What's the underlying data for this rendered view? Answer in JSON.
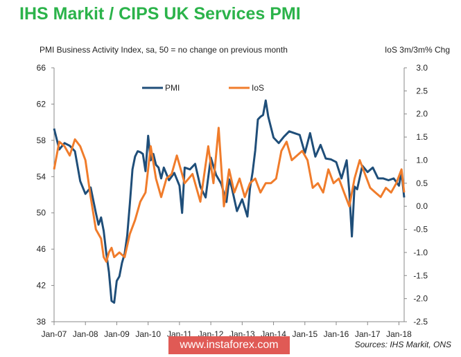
{
  "header": {
    "title": "IHS Markit / CIPS UK Services PMI",
    "subtitle": "PMI Business Activity Index, sa, 50 = no change on previous month",
    "right_axis_label": "IoS 3m/3m% Chg"
  },
  "footer": {
    "watermark": "www.instaforex.com",
    "source": "Sources: IHS Markit, ONS"
  },
  "colors": {
    "pmi": "#1f4e79",
    "ios": "#f07c2b",
    "title": "#2bb34a",
    "watermark_bg": "#e05a55"
  },
  "chart_data": {
    "type": "line",
    "x_range": [
      "Jan-07",
      "Mar-18"
    ],
    "x_ticks": [
      "Jan-07",
      "Jan-08",
      "Jan-09",
      "Jan-10",
      "Jan-11",
      "Jan-12",
      "Jan-13",
      "Jan-14",
      "Jan-15",
      "Jan-16",
      "Jan-17",
      "Jan-18"
    ],
    "ylim": [
      38,
      66
    ],
    "y_ticks": [
      "38",
      "42",
      "46",
      "50",
      "54",
      "58",
      "62",
      "66"
    ],
    "y2lim": [
      -2.5,
      3.0
    ],
    "y2_ticks": [
      "-2.5",
      "-2.0",
      "-1.5",
      "-1.0",
      "-0.5",
      "0.0",
      "0.5",
      "1.0",
      "1.5",
      "2.0",
      "2.5",
      "3.0"
    ],
    "grid": false,
    "legend": "top-center",
    "series": [
      {
        "name": "PMI",
        "axis": "left",
        "x": [
          "2007-01",
          "2007-03",
          "2007-05",
          "2007-07",
          "2007-09",
          "2007-11",
          "2008-01",
          "2008-03",
          "2008-05",
          "2008-06",
          "2008-07",
          "2008-08",
          "2008-09",
          "2008-10",
          "2008-11",
          "2008-12",
          "2009-01",
          "2009-02",
          "2009-03",
          "2009-04",
          "2009-05",
          "2009-06",
          "2009-07",
          "2009-08",
          "2009-09",
          "2009-10",
          "2009-11",
          "2009-12",
          "2010-01",
          "2010-02",
          "2010-03",
          "2010-04",
          "2010-05",
          "2010-06",
          "2010-07",
          "2010-09",
          "2010-11",
          "2011-01",
          "2011-02",
          "2011-03",
          "2011-05",
          "2011-07",
          "2011-09",
          "2011-11",
          "2012-01",
          "2012-03",
          "2012-05",
          "2012-07",
          "2012-08",
          "2012-09",
          "2012-11",
          "2013-01",
          "2013-03",
          "2013-04",
          "2013-05",
          "2013-06",
          "2013-07",
          "2013-08",
          "2013-09",
          "2013-10",
          "2013-11",
          "2014-01",
          "2014-03",
          "2014-05",
          "2014-07",
          "2014-09",
          "2014-11",
          "2015-01",
          "2015-03",
          "2015-05",
          "2015-07",
          "2015-09",
          "2015-11",
          "2016-01",
          "2016-03",
          "2016-05",
          "2016-06",
          "2016-07",
          "2016-08",
          "2016-09",
          "2016-11",
          "2017-01",
          "2017-03",
          "2017-05",
          "2017-07",
          "2017-09",
          "2017-11",
          "2018-01",
          "2018-02",
          "2018-03"
        ],
        "values": [
          59.3,
          57.0,
          57.7,
          57.4,
          56.8,
          53.5,
          52.1,
          52.8,
          50.0,
          48.7,
          49.5,
          48.0,
          45.5,
          43.5,
          40.3,
          40.1,
          42.5,
          43.0,
          44.5,
          45.5,
          47.5,
          51.0,
          54.8,
          56.2,
          56.8,
          56.7,
          56.5,
          54.6,
          58.5,
          55.8,
          56.5,
          55.3,
          55.0,
          53.8,
          55.0,
          53.6,
          54.4,
          53.0,
          50.0,
          55.0,
          54.8,
          55.4,
          52.9,
          51.7,
          56.1,
          54.2,
          53.2,
          51.2,
          53.7,
          52.8,
          50.2,
          51.5,
          49.6,
          52.7,
          54.5,
          56.9,
          60.3,
          60.6,
          60.8,
          62.4,
          60.6,
          58.3,
          57.7,
          58.4,
          59.0,
          58.8,
          58.6,
          56.6,
          58.8,
          56.2,
          57.5,
          56.0,
          55.9,
          55.6,
          53.8,
          55.8,
          52.3,
          47.4,
          52.9,
          52.6,
          55.2,
          54.5,
          55.0,
          53.8,
          53.8,
          53.6,
          53.8,
          53.0,
          54.5,
          51.7
        ]
      },
      {
        "name": "IoS",
        "axis": "right",
        "x": [
          "2007-01",
          "2007-03",
          "2007-05",
          "2007-07",
          "2007-09",
          "2007-11",
          "2008-01",
          "2008-03",
          "2008-05",
          "2008-07",
          "2008-08",
          "2008-09",
          "2008-10",
          "2008-11",
          "2008-12",
          "2009-02",
          "2009-04",
          "2009-06",
          "2009-08",
          "2009-10",
          "2009-12",
          "2010-02",
          "2010-04",
          "2010-06",
          "2010-08",
          "2010-10",
          "2010-12",
          "2011-03",
          "2011-06",
          "2011-09",
          "2011-12",
          "2012-02",
          "2012-04",
          "2012-06",
          "2012-08",
          "2012-10",
          "2012-12",
          "2013-02",
          "2013-04",
          "2013-06",
          "2013-08",
          "2013-10",
          "2013-12",
          "2014-02",
          "2014-04",
          "2014-06",
          "2014-08",
          "2014-10",
          "2014-12",
          "2015-02",
          "2015-04",
          "2015-06",
          "2015-08",
          "2015-10",
          "2015-12",
          "2016-02",
          "2016-04",
          "2016-06",
          "2016-08",
          "2016-10",
          "2016-12",
          "2017-02",
          "2017-04",
          "2017-06",
          "2017-08",
          "2017-10",
          "2017-12",
          "2018-02",
          "2018-03"
        ],
        "values": [
          0.8,
          1.4,
          1.3,
          1.1,
          1.45,
          1.3,
          1.0,
          0.2,
          -0.5,
          -0.7,
          -1.1,
          -1.2,
          -1.0,
          -0.9,
          -1.1,
          -1.0,
          -1.1,
          -0.6,
          -0.3,
          0.1,
          0.3,
          1.3,
          0.6,
          0.2,
          0.6,
          0.7,
          1.1,
          0.5,
          0.7,
          0.1,
          1.3,
          0.5,
          1.7,
          0.0,
          0.8,
          0.3,
          0.6,
          0.2,
          0.5,
          0.6,
          0.3,
          0.5,
          0.5,
          0.6,
          1.2,
          1.4,
          1.0,
          1.1,
          1.2,
          1.0,
          0.4,
          0.5,
          0.3,
          0.8,
          0.5,
          0.6,
          0.3,
          0.0,
          0.6,
          1.0,
          0.7,
          0.4,
          0.3,
          0.2,
          0.4,
          0.3,
          0.5,
          0.8,
          0.3
        ]
      }
    ]
  }
}
